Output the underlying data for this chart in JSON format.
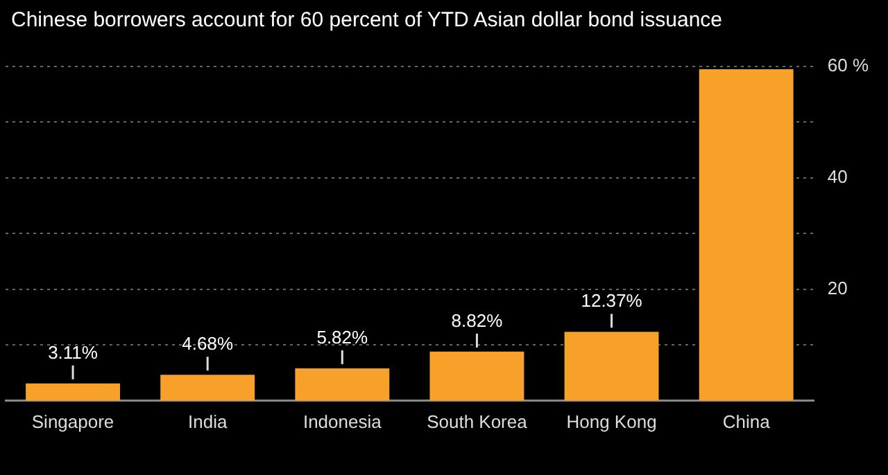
{
  "chart_data": {
    "type": "bar",
    "title": "Chinese borrowers account for 60 percent of YTD Asian dollar bond issuance",
    "categories": [
      "Singapore",
      "India",
      "Indonesia",
      "South Korea",
      "Hong Kong",
      "China"
    ],
    "values": [
      3.11,
      4.68,
      5.82,
      8.82,
      12.37,
      59.5
    ],
    "value_labels": [
      "3.11%",
      "4.68%",
      "5.82%",
      "8.82%",
      "12.37%",
      null
    ],
    "color": "#f7a12b",
    "ylim": [
      0,
      60
    ],
    "yticks": [
      {
        "value": 10,
        "label": null
      },
      20,
      {
        "value": 30,
        "label": null
      },
      40,
      {
        "value": 50,
        "label": null
      },
      {
        "value": 60,
        "label": "60 %"
      }
    ],
    "grid": "y"
  }
}
